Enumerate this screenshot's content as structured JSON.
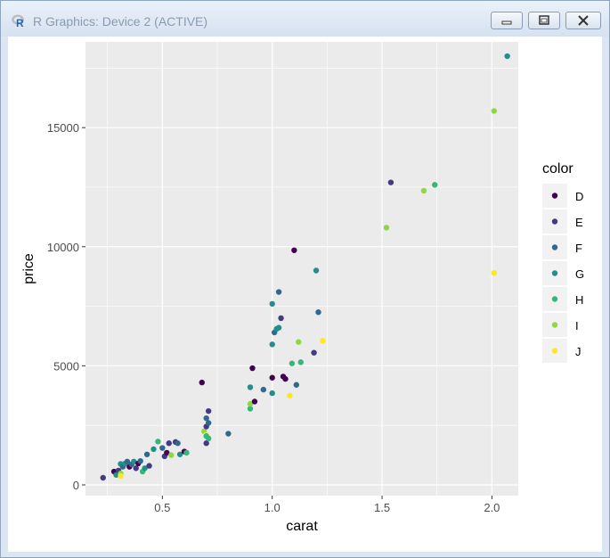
{
  "window": {
    "title": "R Graphics: Device 2 (ACTIVE)",
    "icon": "r-logo-icon",
    "buttons": [
      "minimize-icon",
      "maximize-icon",
      "close-icon"
    ]
  },
  "chart_data": {
    "type": "scatter",
    "title": "",
    "xlabel": "carat",
    "ylabel": "price",
    "xlim": [
      0.15,
      2.12
    ],
    "ylim": [
      -450,
      18600
    ],
    "x_ticks": [
      0.5,
      1.0,
      1.5,
      2.0
    ],
    "x_tick_labels": [
      "0.5",
      "1.0",
      "1.5",
      "2.0"
    ],
    "y_ticks": [
      0,
      5000,
      10000,
      15000
    ],
    "y_tick_labels": [
      "0",
      "5000",
      "10000",
      "15000"
    ],
    "grid": true,
    "panel_background": "#ebebeb",
    "legend": {
      "title": "color",
      "position": "right",
      "entries": [
        {
          "label": "D",
          "color": "#440154"
        },
        {
          "label": "E",
          "color": "#443a83"
        },
        {
          "label": "F",
          "color": "#31688e"
        },
        {
          "label": "G",
          "color": "#21908c"
        },
        {
          "label": "H",
          "color": "#35b779"
        },
        {
          "label": "I",
          "color": "#8fd744"
        },
        {
          "label": "J",
          "color": "#fde725"
        }
      ]
    },
    "points": [
      {
        "x": 0.23,
        "y": 300,
        "color": "E"
      },
      {
        "x": 0.28,
        "y": 560,
        "color": "D"
      },
      {
        "x": 0.29,
        "y": 420,
        "color": "G"
      },
      {
        "x": 0.3,
        "y": 600,
        "color": "E"
      },
      {
        "x": 0.31,
        "y": 880,
        "color": "G"
      },
      {
        "x": 0.31,
        "y": 480,
        "color": "I"
      },
      {
        "x": 0.31,
        "y": 380,
        "color": "J"
      },
      {
        "x": 0.32,
        "y": 760,
        "color": "F"
      },
      {
        "x": 0.33,
        "y": 900,
        "color": "G"
      },
      {
        "x": 0.34,
        "y": 980,
        "color": "F"
      },
      {
        "x": 0.35,
        "y": 760,
        "color": "D"
      },
      {
        "x": 0.36,
        "y": 860,
        "color": "F"
      },
      {
        "x": 0.37,
        "y": 980,
        "color": "G"
      },
      {
        "x": 0.38,
        "y": 700,
        "color": "E"
      },
      {
        "x": 0.39,
        "y": 900,
        "color": "D"
      },
      {
        "x": 0.4,
        "y": 1000,
        "color": "F"
      },
      {
        "x": 0.41,
        "y": 560,
        "color": "H"
      },
      {
        "x": 0.42,
        "y": 700,
        "color": "G"
      },
      {
        "x": 0.43,
        "y": 1280,
        "color": "F"
      },
      {
        "x": 0.44,
        "y": 800,
        "color": "E"
      },
      {
        "x": 0.46,
        "y": 1500,
        "color": "G"
      },
      {
        "x": 0.48,
        "y": 1820,
        "color": "H"
      },
      {
        "x": 0.5,
        "y": 1550,
        "color": "F"
      },
      {
        "x": 0.51,
        "y": 1200,
        "color": "E"
      },
      {
        "x": 0.52,
        "y": 1350,
        "color": "D"
      },
      {
        "x": 0.53,
        "y": 1750,
        "color": "E"
      },
      {
        "x": 0.54,
        "y": 1250,
        "color": "I"
      },
      {
        "x": 0.56,
        "y": 1800,
        "color": "E"
      },
      {
        "x": 0.57,
        "y": 1750,
        "color": "F"
      },
      {
        "x": 0.58,
        "y": 1280,
        "color": "G"
      },
      {
        "x": 0.6,
        "y": 1400,
        "color": "D"
      },
      {
        "x": 0.61,
        "y": 1350,
        "color": "H"
      },
      {
        "x": 0.68,
        "y": 4300,
        "color": "D"
      },
      {
        "x": 0.69,
        "y": 2250,
        "color": "I"
      },
      {
        "x": 0.7,
        "y": 2800,
        "color": "F"
      },
      {
        "x": 0.7,
        "y": 2450,
        "color": "E"
      },
      {
        "x": 0.7,
        "y": 2100,
        "color": "J"
      },
      {
        "x": 0.7,
        "y": 2050,
        "color": "H"
      },
      {
        "x": 0.7,
        "y": 1750,
        "color": "E"
      },
      {
        "x": 0.71,
        "y": 3100,
        "color": "E"
      },
      {
        "x": 0.71,
        "y": 2600,
        "color": "F"
      },
      {
        "x": 0.71,
        "y": 1950,
        "color": "H"
      },
      {
        "x": 0.8,
        "y": 2150,
        "color": "F"
      },
      {
        "x": 0.9,
        "y": 4100,
        "color": "G"
      },
      {
        "x": 0.9,
        "y": 3200,
        "color": "H"
      },
      {
        "x": 0.9,
        "y": 3400,
        "color": "I"
      },
      {
        "x": 0.91,
        "y": 4900,
        "color": "D"
      },
      {
        "x": 0.92,
        "y": 3500,
        "color": "D"
      },
      {
        "x": 0.96,
        "y": 4000,
        "color": "F"
      },
      {
        "x": 1.0,
        "y": 4500,
        "color": "D"
      },
      {
        "x": 1.0,
        "y": 3850,
        "color": "G"
      },
      {
        "x": 1.0,
        "y": 5900,
        "color": "G"
      },
      {
        "x": 1.0,
        "y": 7600,
        "color": "G"
      },
      {
        "x": 1.01,
        "y": 6400,
        "color": "F"
      },
      {
        "x": 1.02,
        "y": 6550,
        "color": "G"
      },
      {
        "x": 1.03,
        "y": 8100,
        "color": "F"
      },
      {
        "x": 1.03,
        "y": 6600,
        "color": "G"
      },
      {
        "x": 1.04,
        "y": 7000,
        "color": "E"
      },
      {
        "x": 1.05,
        "y": 4550,
        "color": "D"
      },
      {
        "x": 1.06,
        "y": 4450,
        "color": "D"
      },
      {
        "x": 1.08,
        "y": 3750,
        "color": "J"
      },
      {
        "x": 1.09,
        "y": 5100,
        "color": "H"
      },
      {
        "x": 1.1,
        "y": 9850,
        "color": "D"
      },
      {
        "x": 1.11,
        "y": 4200,
        "color": "F"
      },
      {
        "x": 1.12,
        "y": 6000,
        "color": "I"
      },
      {
        "x": 1.13,
        "y": 5150,
        "color": "H"
      },
      {
        "x": 1.19,
        "y": 5550,
        "color": "E"
      },
      {
        "x": 1.2,
        "y": 9000,
        "color": "G"
      },
      {
        "x": 1.21,
        "y": 7250,
        "color": "F"
      },
      {
        "x": 1.23,
        "y": 6050,
        "color": "J"
      },
      {
        "x": 1.52,
        "y": 10800,
        "color": "I"
      },
      {
        "x": 1.54,
        "y": 12700,
        "color": "E"
      },
      {
        "x": 1.69,
        "y": 12350,
        "color": "I"
      },
      {
        "x": 1.74,
        "y": 12600,
        "color": "H"
      },
      {
        "x": 2.01,
        "y": 15700,
        "color": "I"
      },
      {
        "x": 2.01,
        "y": 8900,
        "color": "J"
      },
      {
        "x": 2.07,
        "y": 18000,
        "color": "G"
      }
    ]
  }
}
